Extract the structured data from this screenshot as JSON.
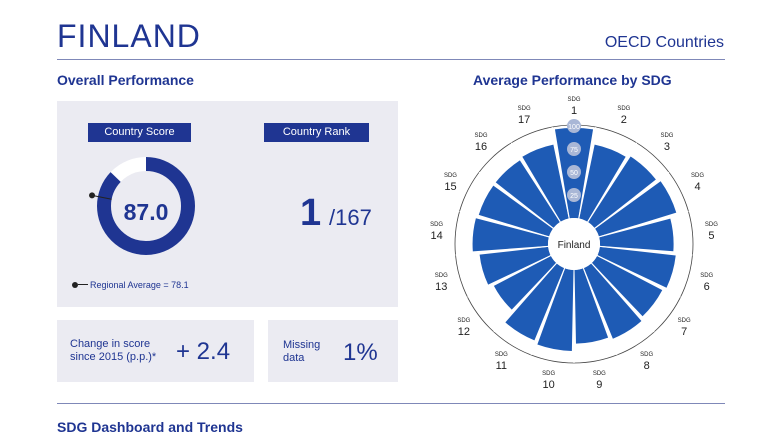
{
  "header": {
    "title": "FINLAND",
    "group": "OECD Countries"
  },
  "overall": {
    "heading": "Overall Performance",
    "score_label": "Country Score",
    "score_value": "87.0",
    "score_fraction": 0.87,
    "regional_avg_fraction": 0.781,
    "rank_label": "Country Rank",
    "rank": "1",
    "rank_total": "/167",
    "regional_average": "Regional Average = 78.1",
    "change_label_1": "Change in score",
    "change_label_2": "since 2015 (p.p.)*",
    "change_value": "+ 2.4",
    "missing_label_1": "Missing",
    "missing_label_2": "data",
    "missing_value": "1%"
  },
  "sdg_chart": {
    "heading": "Average Performance by SDG",
    "center_label": "Finland",
    "sdg_prefix": "SDG",
    "ring_labels": [
      "25",
      "50",
      "75",
      "100"
    ],
    "colors": {
      "primary": "#1f3592",
      "bar": "#1e5bb5",
      "panel": "#ebebf2"
    }
  },
  "chart_data": {
    "type": "radial-bar",
    "title": "Average Performance by SDG",
    "categories": [
      "1",
      "2",
      "3",
      "4",
      "5",
      "6",
      "7",
      "8",
      "9",
      "10",
      "11",
      "12",
      "13",
      "14",
      "15",
      "16",
      "17"
    ],
    "values": [
      98,
      82,
      85,
      88,
      80,
      83,
      80,
      83,
      80,
      88,
      85,
      70,
      75,
      82,
      80,
      80,
      82
    ],
    "rlim": [
      0,
      100
    ]
  },
  "footer": {
    "heading": "SDG Dashboard and Trends"
  }
}
